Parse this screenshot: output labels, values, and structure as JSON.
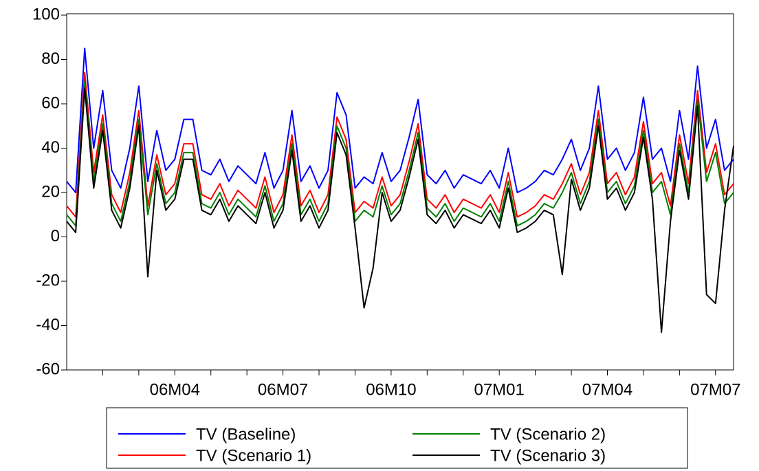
{
  "chart_data": {
    "type": "line",
    "categories": [
      null,
      null,
      null,
      null,
      null,
      null,
      null,
      null,
      null,
      null,
      null,
      null,
      "06M04",
      null,
      null,
      null,
      null,
      null,
      null,
      null,
      null,
      null,
      null,
      null,
      "06M07",
      null,
      null,
      null,
      null,
      null,
      null,
      null,
      null,
      null,
      null,
      null,
      "06M10",
      null,
      null,
      null,
      null,
      null,
      null,
      null,
      null,
      null,
      null,
      null,
      "07M01",
      null,
      null,
      null,
      null,
      null,
      null,
      null,
      null,
      null,
      null,
      null,
      "07M04",
      null,
      null,
      null,
      null,
      null,
      null,
      null,
      null,
      null,
      null,
      null,
      "07M07",
      null,
      null
    ],
    "series": [
      {
        "name": "TV (Baseline)",
        "color": "#0000ff",
        "values": [
          25,
          20,
          85,
          40,
          66,
          30,
          22,
          40,
          68,
          25,
          48,
          30,
          35,
          53,
          53,
          30,
          28,
          35,
          25,
          32,
          28,
          24,
          38,
          22,
          30,
          57,
          25,
          32,
          22,
          30,
          65,
          55,
          22,
          27,
          24,
          38,
          25,
          30,
          45,
          62,
          28,
          24,
          30,
          22,
          28,
          26,
          24,
          30,
          22,
          40,
          20,
          22,
          25,
          30,
          28,
          35,
          44,
          30,
          40,
          68,
          35,
          40,
          30,
          38,
          63,
          35,
          40,
          25,
          57,
          35,
          77,
          40,
          53,
          30,
          35
        ]
      },
      {
        "name": "TV (Scenario 1)",
        "color": "#ff0000",
        "values": [
          14,
          9,
          74,
          29,
          55,
          19,
          11,
          29,
          57,
          14,
          37,
          19,
          24,
          42,
          42,
          19,
          17,
          24,
          14,
          21,
          17,
          13,
          27,
          11,
          19,
          46,
          14,
          21,
          11,
          19,
          54,
          44,
          11,
          16,
          13,
          27,
          14,
          19,
          34,
          51,
          17,
          13,
          19,
          11,
          17,
          15,
          13,
          19,
          11,
          29,
          9,
          11,
          14,
          19,
          17,
          24,
          33,
          19,
          29,
          57,
          24,
          29,
          19,
          27,
          52,
          24,
          29,
          14,
          46,
          24,
          66,
          29,
          42,
          19,
          24
        ]
      },
      {
        "name": "TV (Scenario 2)",
        "color": "#008000",
        "values": [
          10,
          5,
          70,
          25,
          51,
          15,
          7,
          25,
          53,
          10,
          33,
          15,
          20,
          38,
          38,
          15,
          13,
          20,
          10,
          17,
          13,
          9,
          23,
          7,
          15,
          42,
          10,
          17,
          7,
          15,
          50,
          40,
          7,
          12,
          9,
          23,
          10,
          15,
          30,
          47,
          13,
          9,
          15,
          7,
          13,
          11,
          9,
          15,
          7,
          25,
          5,
          7,
          10,
          15,
          13,
          20,
          29,
          15,
          25,
          53,
          20,
          25,
          15,
          23,
          48,
          20,
          25,
          10,
          42,
          20,
          62,
          25,
          38,
          15,
          20
        ]
      },
      {
        "name": "TV (Scenario 3)",
        "color": "#000000",
        "values": [
          7,
          2,
          67,
          22,
          48,
          12,
          4,
          22,
          50,
          -18,
          30,
          12,
          17,
          35,
          35,
          12,
          10,
          17,
          7,
          14,
          10,
          6,
          20,
          4,
          12,
          39,
          7,
          14,
          4,
          12,
          47,
          37,
          4,
          -32,
          -14,
          20,
          7,
          12,
          27,
          44,
          10,
          6,
          12,
          4,
          10,
          8,
          6,
          12,
          4,
          22,
          2,
          4,
          7,
          12,
          10,
          -17,
          26,
          12,
          22,
          50,
          17,
          22,
          12,
          20,
          45,
          17,
          -43,
          7,
          39,
          17,
          59,
          -26,
          -30,
          12,
          41
        ]
      }
    ],
    "ylim": [
      -60,
      100
    ],
    "yticks": [
      -60,
      -40,
      -20,
      0,
      20,
      40,
      60,
      80,
      100
    ],
    "grid": false,
    "legend": "bottom"
  }
}
